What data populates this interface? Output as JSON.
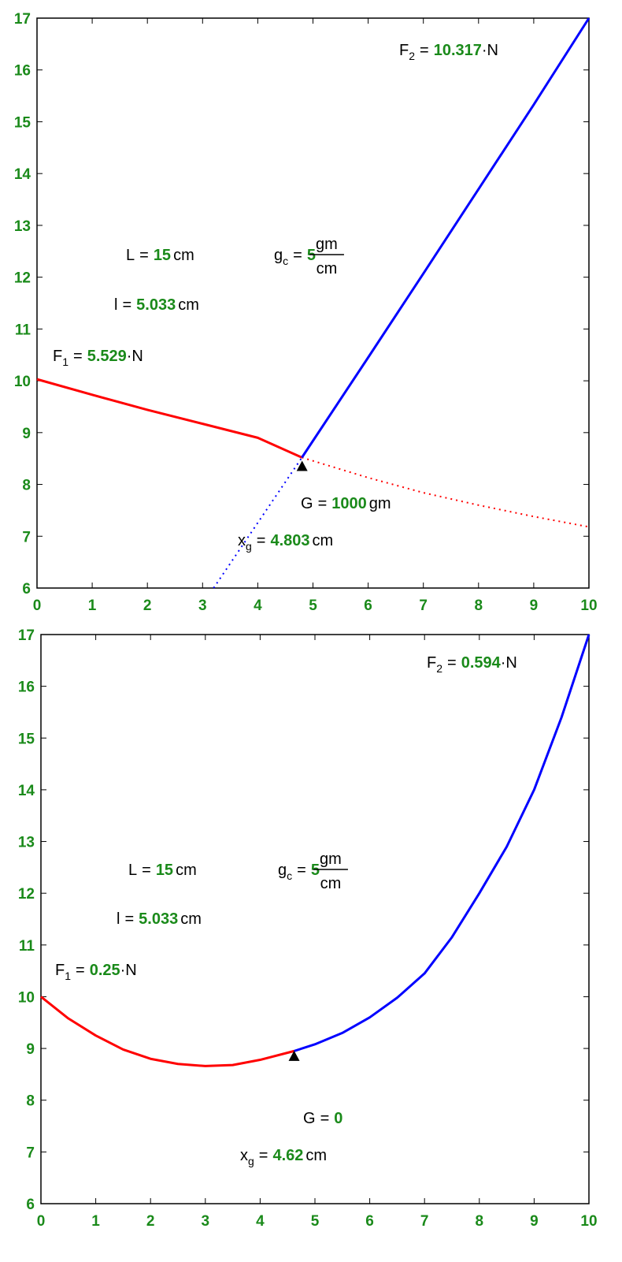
{
  "chart_data": [
    {
      "type": "line",
      "xlim": [
        0,
        10
      ],
      "ylim": [
        6,
        17
      ],
      "xticks": [
        0,
        1,
        2,
        3,
        4,
        5,
        6,
        7,
        8,
        9,
        10
      ],
      "yticks": [
        6,
        7,
        8,
        9,
        10,
        11,
        12,
        13,
        14,
        15,
        16,
        17
      ],
      "series": [
        {
          "color": "#ff0000",
          "style": "solid",
          "x": [
            0,
            1,
            2,
            3,
            4,
            4.8
          ],
          "values": [
            10.03,
            9.73,
            9.44,
            9.17,
            8.9,
            8.52
          ]
        },
        {
          "color": "#ff0000",
          "style": "dotted",
          "x": [
            4.8,
            6,
            7,
            8,
            9,
            10
          ],
          "values": [
            8.52,
            8.13,
            7.84,
            7.6,
            7.38,
            7.18
          ]
        },
        {
          "color": "#0000ff",
          "style": "solid",
          "x": [
            4.8,
            6,
            7,
            8,
            9,
            10
          ],
          "values": [
            8.52,
            10.45,
            12.07,
            13.7,
            15.33,
            17
          ]
        },
        {
          "color": "#0000ff",
          "style": "dotted",
          "x": [
            3.2,
            4,
            4.8
          ],
          "values": [
            6,
            7.26,
            8.52
          ]
        }
      ],
      "marker": {
        "x": 4.803,
        "y": 8.35,
        "color": "#000000"
      },
      "annotations": [
        {
          "text": "F",
          "sub": "2",
          "eq": "=",
          "value": 10.317,
          "unit": "·N"
        },
        {
          "text": "L",
          "eq": "=",
          "value": 15,
          "unit": "cm"
        },
        {
          "text": "g",
          "sub": "c",
          "eq": "=",
          "value": 5,
          "unit_num": "gm",
          "unit_den": "cm"
        },
        {
          "text": "l",
          "eq": "=",
          "value": 5.033,
          "unit": "cm"
        },
        {
          "text": "F",
          "sub": "1",
          "eq": "=",
          "value": 5.529,
          "unit": "·N"
        },
        {
          "text": "G",
          "eq": "=",
          "value": 1000,
          "unit": "gm"
        },
        {
          "text": "x",
          "sub": "g",
          "eq": "=",
          "value": 4.803,
          "unit": "cm"
        }
      ]
    },
    {
      "type": "line",
      "xlim": [
        0,
        10
      ],
      "ylim": [
        6,
        17
      ],
      "xticks": [
        0,
        1,
        2,
        3,
        4,
        5,
        6,
        7,
        8,
        9,
        10
      ],
      "yticks": [
        6,
        7,
        8,
        9,
        10,
        11,
        12,
        13,
        14,
        15,
        16,
        17
      ],
      "series": [
        {
          "color": "#ff0000",
          "style": "solid",
          "x": [
            0,
            0.5,
            1,
            1.5,
            2,
            2.5,
            3,
            3.5,
            4,
            4.62
          ],
          "values": [
            10,
            9.58,
            9.25,
            8.98,
            8.8,
            8.7,
            8.66,
            8.68,
            8.78,
            8.95
          ]
        },
        {
          "color": "#0000ff",
          "style": "solid",
          "x": [
            4.62,
            5,
            5.5,
            6,
            6.5,
            7,
            7.5,
            8,
            8.5,
            9,
            9.5,
            10
          ],
          "values": [
            8.95,
            9.08,
            9.3,
            9.6,
            9.98,
            10.45,
            11.15,
            12.0,
            12.9,
            14.0,
            15.4,
            17
          ]
        }
      ],
      "marker": {
        "x": 4.62,
        "y": 8.85,
        "color": "#000000"
      },
      "annotations": [
        {
          "text": "F",
          "sub": "2",
          "eq": "=",
          "value": 0.594,
          "unit": "·N"
        },
        {
          "text": "L",
          "eq": "=",
          "value": 15,
          "unit": "cm"
        },
        {
          "text": "g",
          "sub": "c",
          "eq": "=",
          "value": 5,
          "unit_num": "gm",
          "unit_den": "cm"
        },
        {
          "text": "l",
          "eq": "=",
          "value": 5.033,
          "unit": "cm"
        },
        {
          "text": "F",
          "sub": "1",
          "eq": "=",
          "value": 0.25,
          "unit": "·N"
        },
        {
          "text": "G",
          "eq": "=",
          "value": 0
        },
        {
          "text": "x",
          "sub": "g",
          "eq": "=",
          "value": 4.62,
          "unit": "cm"
        }
      ]
    }
  ]
}
